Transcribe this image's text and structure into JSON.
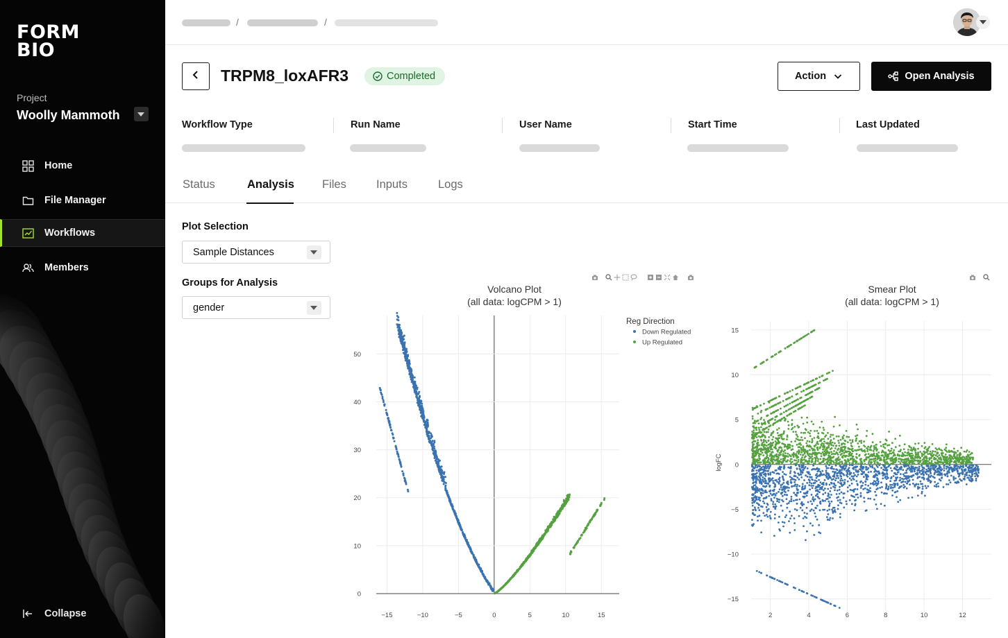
{
  "brand": {
    "logo_line1": "FORM",
    "logo_line2": "BIO"
  },
  "project": {
    "label": "Project",
    "name": "Woolly Mammoth"
  },
  "sidebar": {
    "items": [
      {
        "label": "Home",
        "icon": "grid-icon"
      },
      {
        "label": "File Manager",
        "icon": "folder-icon"
      },
      {
        "label": "Workflows",
        "icon": "workflow-chart-icon",
        "active": true
      },
      {
        "label": "Members",
        "icon": "members-icon"
      }
    ],
    "collapse_label": "Collapse",
    "accent_color": "#a6e22e"
  },
  "breadcrumb": {
    "separator": "/"
  },
  "header": {
    "title": "TRPM8_loxAFR3",
    "status": "Completed",
    "action_label": "Action",
    "open_label": "Open Analysis"
  },
  "meta": {
    "workflow_type": "Workflow Type",
    "run_name": "Run Name",
    "user_name": "User Name",
    "start_time": "Start Time",
    "last_updated": "Last Updated"
  },
  "tabs": {
    "status": "Status",
    "analysis": "Analysis",
    "files": "Files",
    "inputs": "Inputs",
    "logs": "Logs",
    "active": "Analysis"
  },
  "controls": {
    "plot_selection_label": "Plot Selection",
    "plot_selection_value": "Sample Distances",
    "groups_label": "Groups for Analysis",
    "groups_value": "gender"
  },
  "chart_data": [
    {
      "type": "scatter",
      "title": "Volcano Plot",
      "subtitle": "(all data: logCPM > 1)",
      "xlabel": "",
      "ylabel": "",
      "xlim": [
        -16.5,
        17.5
      ],
      "ylim": [
        0,
        58
      ],
      "xticks": [
        "−15",
        "−10",
        "−5",
        "0",
        "5",
        "10",
        "15"
      ],
      "yticks": [
        "0",
        "10",
        "20",
        "30",
        "40",
        "50"
      ],
      "grid": true,
      "legend_title": "Reg Direction",
      "legend_position": "top-right",
      "series": [
        {
          "name": "Down Regulated",
          "color": "#3a72b0",
          "shape": "left arm of V: y grows from 0 at x=0 to about 56 at x=-13.5, plus a parallel streak from (-16,43) to (-12,21)"
        },
        {
          "name": "Up Regulated",
          "color": "#55a140",
          "shape": "right arm of V: y grows from 0 at x=0 to about 22 at x=11, plus a parallel streak from (10.5,8) to (15.5,20)"
        }
      ]
    },
    {
      "type": "scatter",
      "title": "Smear Plot",
      "subtitle": "(all data: logCPM > 1)",
      "xlabel": "",
      "ylabel": "logFC",
      "xlim": [
        1,
        13.5
      ],
      "ylim": [
        -16.5,
        16
      ],
      "xticks": [
        "2",
        "4",
        "6",
        "8",
        "10",
        "12"
      ],
      "yticks": [
        "15",
        "10",
        "5",
        "0",
        "−5",
        "−10",
        "−15"
      ],
      "grid": true,
      "series": [
        {
          "name": "Up Regulated",
          "color": "#55a140",
          "range_logFC": [
            0,
            16
          ]
        },
        {
          "name": "Down Regulated",
          "color": "#3a72b0",
          "range_logFC": [
            -16,
            0
          ]
        }
      ]
    }
  ]
}
